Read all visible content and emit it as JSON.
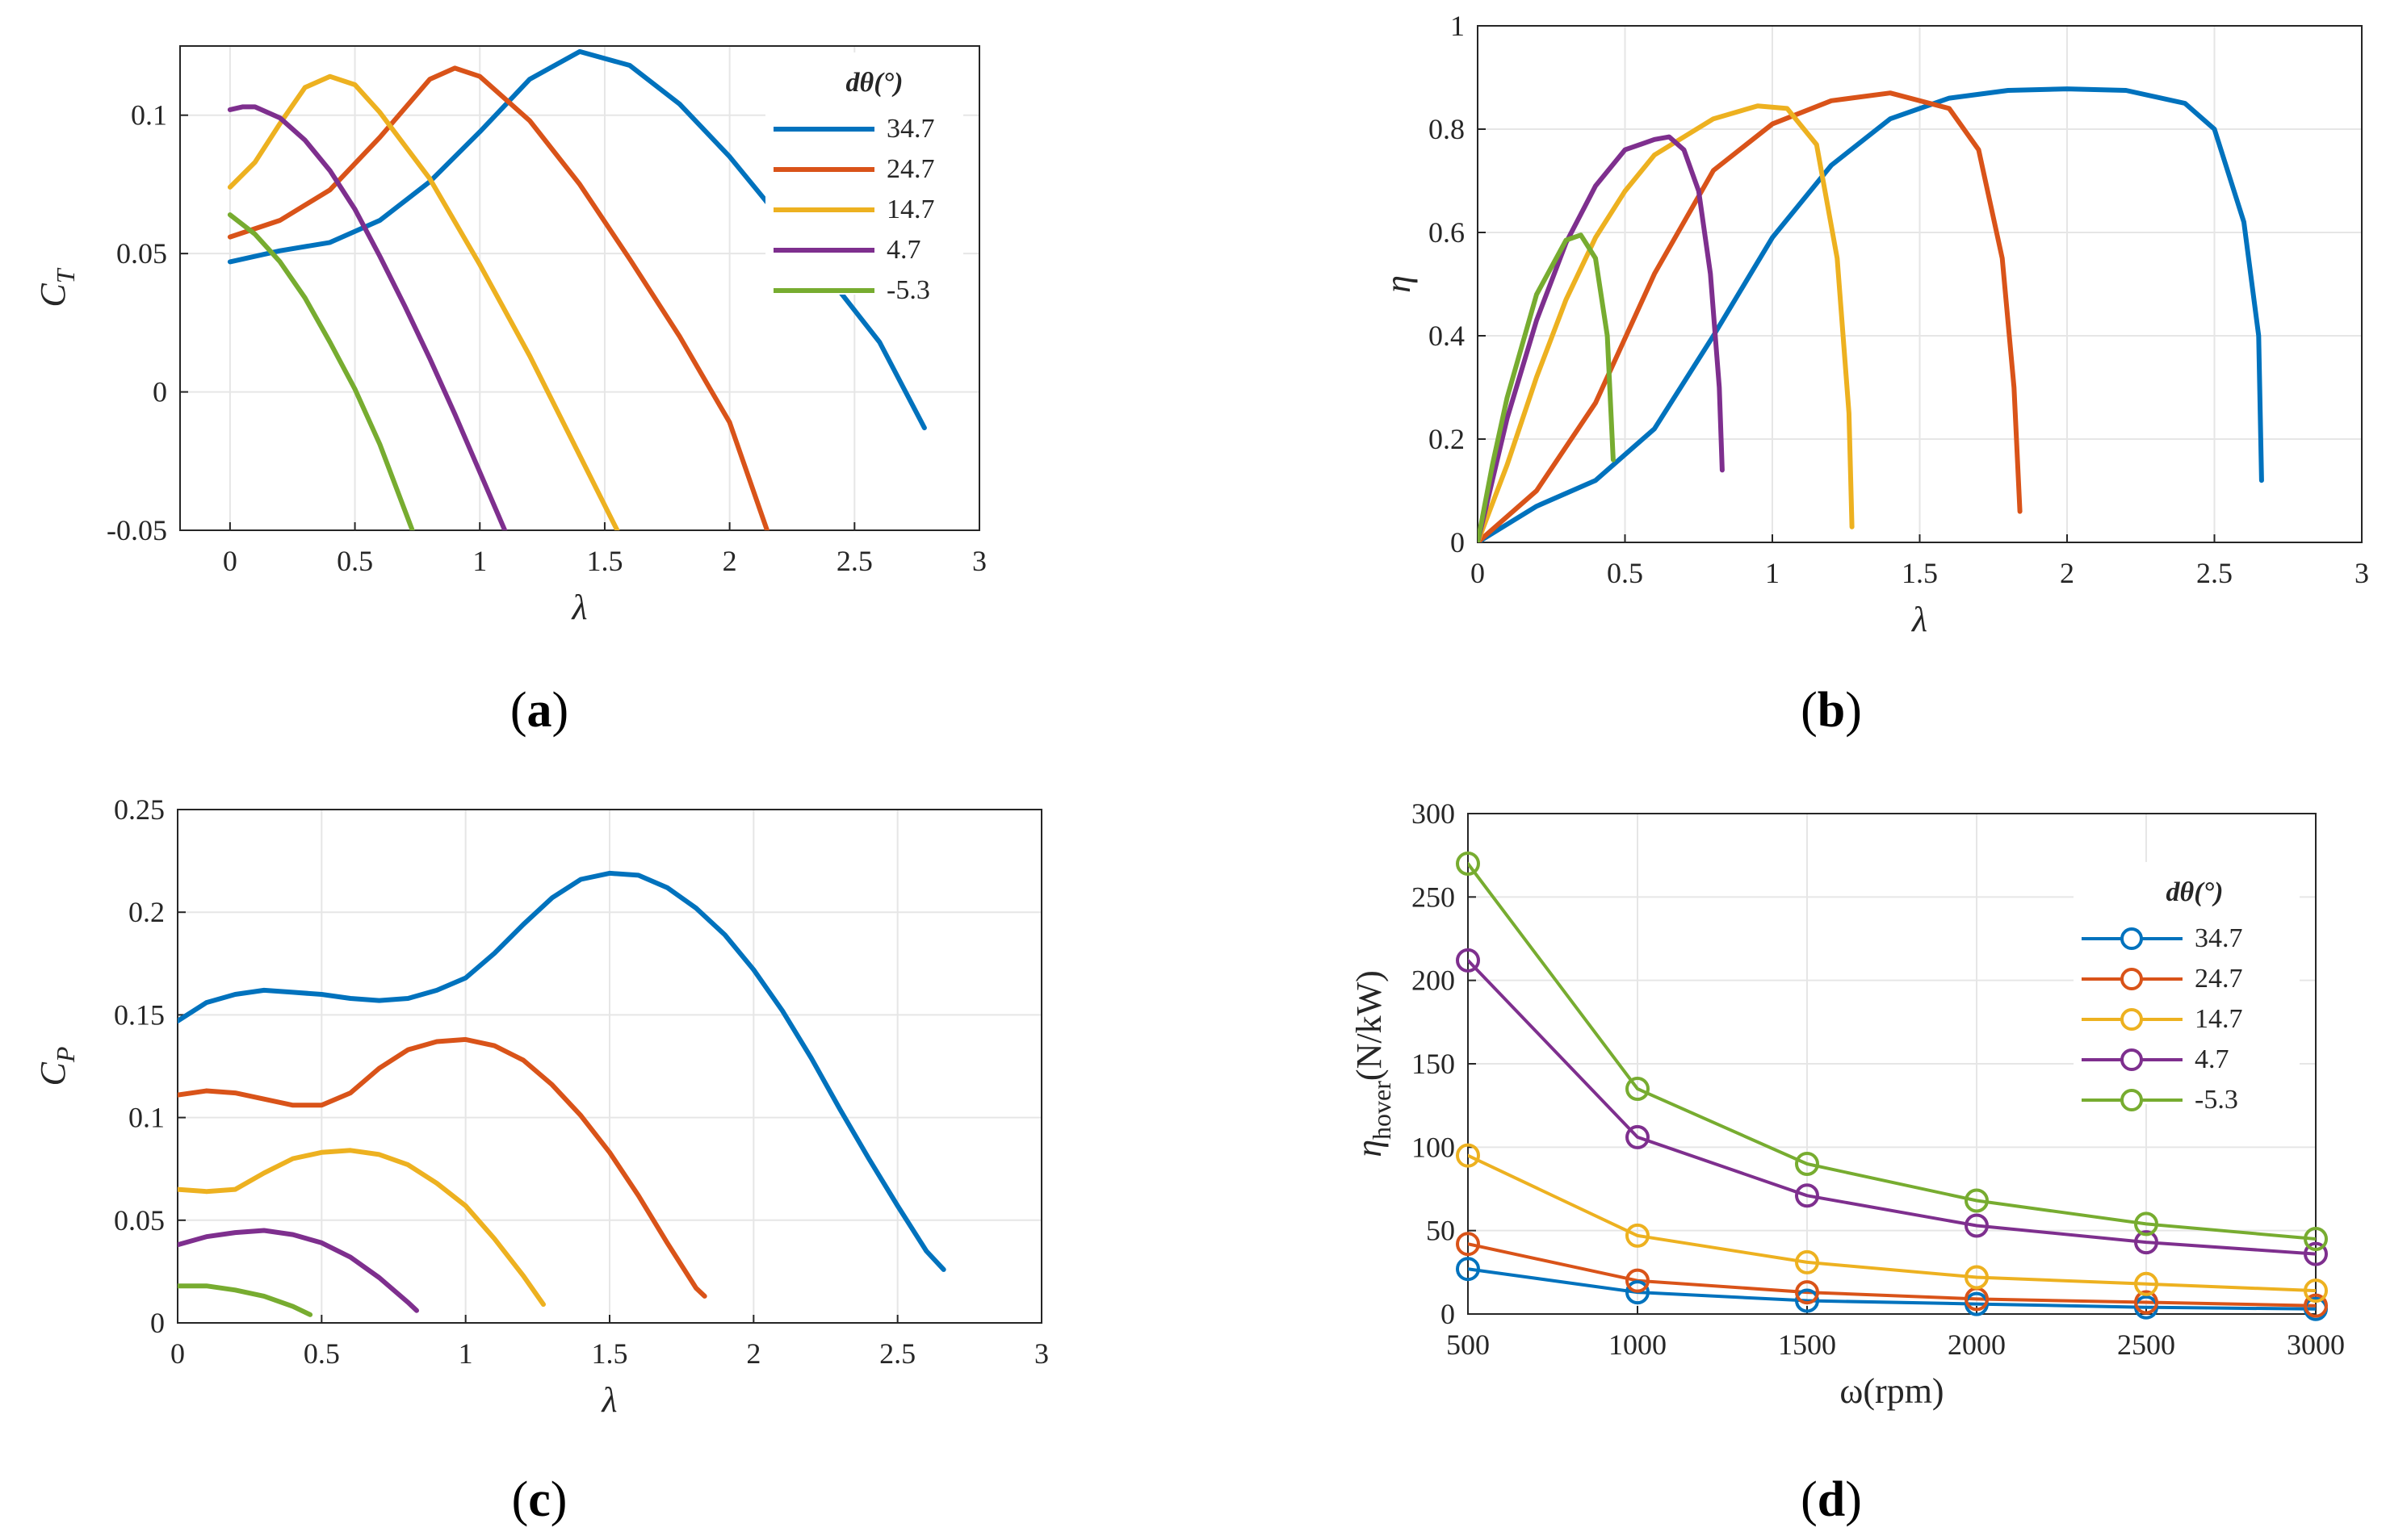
{
  "figure": {
    "legend_title": "dθ(°)",
    "series_names": [
      "34.7",
      "24.7",
      "14.7",
      "4.7",
      "-5.3"
    ],
    "series_colors": [
      "#0072BD",
      "#D95319",
      "#EDB120",
      "#7E2F8E",
      "#77AC30"
    ]
  },
  "chart_data": [
    {
      "id": "a",
      "type": "line",
      "panel_label": "a",
      "xlabel": "λ",
      "ylabel": "C",
      "ylabel_sub": "T",
      "xlim": [
        -0.2,
        3
      ],
      "ylim": [
        -0.05,
        0.125
      ],
      "xticks": [
        "0",
        "0.5",
        "1",
        "1.5",
        "2",
        "2.5",
        "3"
      ],
      "yticks": [
        "-0.05",
        "0",
        "0.05",
        "0.1"
      ],
      "grid": true,
      "legend": {
        "title": "dθ(°)",
        "entries": [
          "34.7",
          "24.7",
          "14.7",
          "4.7",
          "-5.3"
        ],
        "position": "top-right"
      },
      "series": [
        {
          "name": "34.7",
          "x": [
            0,
            0.2,
            0.4,
            0.6,
            0.8,
            1.0,
            1.2,
            1.4,
            1.6,
            1.8,
            2.0,
            2.2,
            2.4,
            2.6,
            2.78
          ],
          "y": [
            0.047,
            0.051,
            0.054,
            0.062,
            0.076,
            0.094,
            0.113,
            0.123,
            0.118,
            0.104,
            0.085,
            0.063,
            0.041,
            0.018,
            -0.013
          ]
        },
        {
          "name": "24.7",
          "x": [
            0,
            0.2,
            0.4,
            0.6,
            0.8,
            0.9,
            1.0,
            1.2,
            1.4,
            1.6,
            1.8,
            2.0,
            2.15
          ],
          "y": [
            0.056,
            0.062,
            0.073,
            0.092,
            0.113,
            0.117,
            0.114,
            0.098,
            0.075,
            0.048,
            0.02,
            -0.011,
            -0.05
          ]
        },
        {
          "name": "14.7",
          "x": [
            0,
            0.1,
            0.2,
            0.3,
            0.4,
            0.5,
            0.6,
            0.8,
            1.0,
            1.2,
            1.4,
            1.55
          ],
          "y": [
            0.074,
            0.083,
            0.097,
            0.11,
            0.114,
            0.111,
            0.101,
            0.077,
            0.046,
            0.013,
            -0.023,
            -0.05
          ]
        },
        {
          "name": "4.7",
          "x": [
            0,
            0.05,
            0.1,
            0.2,
            0.3,
            0.4,
            0.5,
            0.6,
            0.7,
            0.8,
            0.9,
            1.0,
            1.1
          ],
          "y": [
            0.102,
            0.103,
            0.103,
            0.099,
            0.091,
            0.08,
            0.066,
            0.049,
            0.031,
            0.012,
            -0.008,
            -0.029,
            -0.05
          ]
        },
        {
          "name": "-5.3",
          "x": [
            0,
            0.1,
            0.2,
            0.3,
            0.4,
            0.5,
            0.6,
            0.73
          ],
          "y": [
            0.064,
            0.057,
            0.047,
            0.034,
            0.018,
            0.001,
            -0.019,
            -0.05
          ]
        }
      ]
    },
    {
      "id": "b",
      "type": "line",
      "panel_label": "b",
      "xlabel": "λ",
      "ylabel": "η",
      "xlim": [
        0,
        3
      ],
      "ylim": [
        0,
        1
      ],
      "xticks": [
        "0",
        "0.5",
        "1",
        "1.5",
        "2",
        "2.5",
        "3"
      ],
      "yticks": [
        "0",
        "0.2",
        "0.4",
        "0.6",
        "0.8",
        "1"
      ],
      "grid": true,
      "series": [
        {
          "name": "34.7",
          "x": [
            0,
            0.2,
            0.4,
            0.6,
            0.8,
            1.0,
            1.2,
            1.4,
            1.6,
            1.8,
            2.0,
            2.2,
            2.4,
            2.5,
            2.6,
            2.65,
            2.66
          ],
          "y": [
            0,
            0.07,
            0.12,
            0.22,
            0.4,
            0.59,
            0.73,
            0.82,
            0.86,
            0.875,
            0.878,
            0.875,
            0.85,
            0.8,
            0.62,
            0.4,
            0.12
          ]
        },
        {
          "name": "24.7",
          "x": [
            0,
            0.2,
            0.4,
            0.6,
            0.8,
            1.0,
            1.2,
            1.4,
            1.6,
            1.7,
            1.78,
            1.82,
            1.84
          ],
          "y": [
            0,
            0.1,
            0.27,
            0.52,
            0.72,
            0.81,
            0.855,
            0.87,
            0.84,
            0.76,
            0.55,
            0.3,
            0.06
          ]
        },
        {
          "name": "14.7",
          "x": [
            0,
            0.1,
            0.2,
            0.3,
            0.4,
            0.5,
            0.6,
            0.8,
            0.95,
            1.05,
            1.15,
            1.22,
            1.26,
            1.27
          ],
          "y": [
            0,
            0.15,
            0.32,
            0.47,
            0.59,
            0.68,
            0.75,
            0.82,
            0.845,
            0.84,
            0.77,
            0.55,
            0.25,
            0.03
          ]
        },
        {
          "name": "4.7",
          "x": [
            0,
            0.1,
            0.2,
            0.3,
            0.4,
            0.5,
            0.6,
            0.65,
            0.7,
            0.75,
            0.79,
            0.82,
            0.83
          ],
          "y": [
            0,
            0.24,
            0.43,
            0.58,
            0.69,
            0.76,
            0.78,
            0.785,
            0.76,
            0.68,
            0.52,
            0.3,
            0.14
          ]
        },
        {
          "name": "-5.3",
          "x": [
            0,
            0.05,
            0.1,
            0.2,
            0.3,
            0.35,
            0.4,
            0.44,
            0.46
          ],
          "y": [
            0,
            0.15,
            0.28,
            0.48,
            0.585,
            0.595,
            0.55,
            0.4,
            0.16
          ]
        }
      ]
    },
    {
      "id": "c",
      "type": "line",
      "panel_label": "c",
      "xlabel": "λ",
      "ylabel": "C",
      "ylabel_sub": "P",
      "xlim": [
        0,
        3
      ],
      "ylim": [
        0,
        0.25
      ],
      "xticks": [
        "0",
        "0.5",
        "1",
        "1.5",
        "2",
        "2.5",
        "3"
      ],
      "yticks": [
        "0",
        "0.05",
        "0.1",
        "0.15",
        "0.2",
        "0.25"
      ],
      "grid": true,
      "series": [
        {
          "name": "34.7",
          "x": [
            0,
            0.1,
            0.2,
            0.3,
            0.4,
            0.5,
            0.6,
            0.7,
            0.8,
            0.9,
            1.0,
            1.1,
            1.2,
            1.3,
            1.4,
            1.5,
            1.6,
            1.7,
            1.8,
            1.9,
            2.0,
            2.1,
            2.2,
            2.3,
            2.4,
            2.5,
            2.6,
            2.66
          ],
          "y": [
            0.147,
            0.156,
            0.16,
            0.162,
            0.161,
            0.16,
            0.158,
            0.157,
            0.158,
            0.162,
            0.168,
            0.18,
            0.194,
            0.207,
            0.216,
            0.219,
            0.218,
            0.212,
            0.202,
            0.189,
            0.172,
            0.152,
            0.129,
            0.104,
            0.08,
            0.057,
            0.035,
            0.026
          ]
        },
        {
          "name": "24.7",
          "x": [
            0,
            0.1,
            0.2,
            0.3,
            0.4,
            0.5,
            0.6,
            0.7,
            0.8,
            0.9,
            1.0,
            1.1,
            1.2,
            1.3,
            1.4,
            1.5,
            1.6,
            1.7,
            1.8,
            1.83
          ],
          "y": [
            0.111,
            0.113,
            0.112,
            0.109,
            0.106,
            0.106,
            0.112,
            0.124,
            0.133,
            0.137,
            0.138,
            0.135,
            0.128,
            0.116,
            0.101,
            0.083,
            0.062,
            0.039,
            0.017,
            0.013
          ]
        },
        {
          "name": "14.7",
          "x": [
            0,
            0.1,
            0.2,
            0.3,
            0.4,
            0.5,
            0.6,
            0.7,
            0.8,
            0.9,
            1.0,
            1.1,
            1.2,
            1.27
          ],
          "y": [
            0.065,
            0.064,
            0.065,
            0.073,
            0.08,
            0.083,
            0.084,
            0.082,
            0.077,
            0.068,
            0.057,
            0.041,
            0.023,
            0.009
          ]
        },
        {
          "name": "4.7",
          "x": [
            0,
            0.1,
            0.2,
            0.3,
            0.4,
            0.5,
            0.6,
            0.7,
            0.8,
            0.83
          ],
          "y": [
            0.038,
            0.042,
            0.044,
            0.045,
            0.043,
            0.039,
            0.032,
            0.022,
            0.01,
            0.006
          ]
        },
        {
          "name": "-5.3",
          "x": [
            0,
            0.1,
            0.2,
            0.3,
            0.4,
            0.46
          ],
          "y": [
            0.018,
            0.018,
            0.016,
            0.013,
            0.008,
            0.004
          ]
        }
      ]
    },
    {
      "id": "d",
      "type": "line",
      "markers": "circle",
      "panel_label": "d",
      "xlabel": "ω(rpm)",
      "ylabel": "η",
      "ylabel_sub": "hover",
      "ylabel_rest": "(N/kW)",
      "xlim": [
        500,
        3000
      ],
      "ylim": [
        0,
        300
      ],
      "xticks": [
        "500",
        "1000",
        "1500",
        "2000",
        "2500",
        "3000"
      ],
      "yticks": [
        "0",
        "50",
        "100",
        "150",
        "200",
        "250",
        "300"
      ],
      "grid": true,
      "legend": {
        "title": "dθ(°)",
        "entries": [
          "34.7",
          "24.7",
          "14.7",
          "4.7",
          "-5.3"
        ],
        "position": "top-right"
      },
      "x": [
        500,
        1000,
        1500,
        2000,
        2500,
        3000
      ],
      "series": [
        {
          "name": "34.7",
          "values": [
            27,
            13,
            8,
            6,
            4,
            3
          ]
        },
        {
          "name": "24.7",
          "values": [
            42,
            20,
            13,
            9,
            7,
            5
          ]
        },
        {
          "name": "14.7",
          "values": [
            95,
            47,
            31,
            22,
            18,
            14
          ]
        },
        {
          "name": "4.7",
          "values": [
            212,
            106,
            71,
            53,
            43,
            36
          ]
        },
        {
          "name": "-5.3",
          "values": [
            270,
            135,
            90,
            68,
            54,
            45
          ]
        }
      ]
    }
  ]
}
